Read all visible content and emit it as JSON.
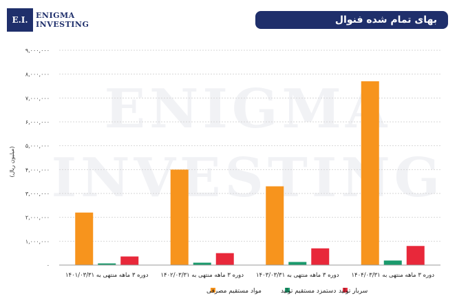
{
  "header": {
    "logo_mark": "E.I.",
    "logo_line1": "ENIGMA",
    "logo_line2": "INVESTING",
    "title": "بهای تمام شده فنوال"
  },
  "watermark": {
    "line1": "ENIGMA",
    "line2": "INVESTING"
  },
  "colors": {
    "navy": "#1f2f6b",
    "orange": "#f7941d",
    "green": "#1a9a6c",
    "red": "#e8283a"
  },
  "chart_data": {
    "type": "bar",
    "title": "بهای تمام شده فنوال",
    "ylabel": "(میلیون ریال)",
    "ylim": [
      0,
      9000000
    ],
    "yticks": [
      0,
      1000000,
      2000000,
      3000000,
      4000000,
      5000000,
      6000000,
      7000000,
      8000000,
      9000000
    ],
    "ytick_labels": [
      "۰",
      "۱,۰۰۰,۰۰۰",
      "۲,۰۰۰,۰۰۰",
      "۳,۰۰۰,۰۰۰",
      "۴,۰۰۰,۰۰۰",
      "۵,۰۰۰,۰۰۰",
      "۶,۰۰۰,۰۰۰",
      "۷,۰۰۰,۰۰۰",
      "۸,۰۰۰,۰۰۰",
      "۹,۰۰۰,۰۰۰"
    ],
    "grid": true,
    "legend_position": "bottom",
    "categories": [
      "دوره ۳ ماهه منتهی به ۱۴۰۱/۰۳/۳۱",
      "دوره ۳ ماهه منتهی به ۱۴۰۲/۰۳/۳۱",
      "دوره ۳ ماهه منتهی به ۱۴۰۳/۰۳/۳۱",
      "دوره ۳ ماهه منتهی به ۱۴۰۴/۰۳/۳۱"
    ],
    "series": [
      {
        "name": "مواد مستقیم مصرفی",
        "color": "#f7941d",
        "values": [
          2200000,
          4000000,
          3300000,
          7700000
        ]
      },
      {
        "name": "دستمزد مستقیم تولید",
        "color": "#1a9a6c",
        "values": [
          70000,
          100000,
          130000,
          190000
        ]
      },
      {
        "name": "سربار تولید",
        "color": "#e8283a",
        "values": [
          360000,
          500000,
          700000,
          800000
        ]
      }
    ]
  }
}
